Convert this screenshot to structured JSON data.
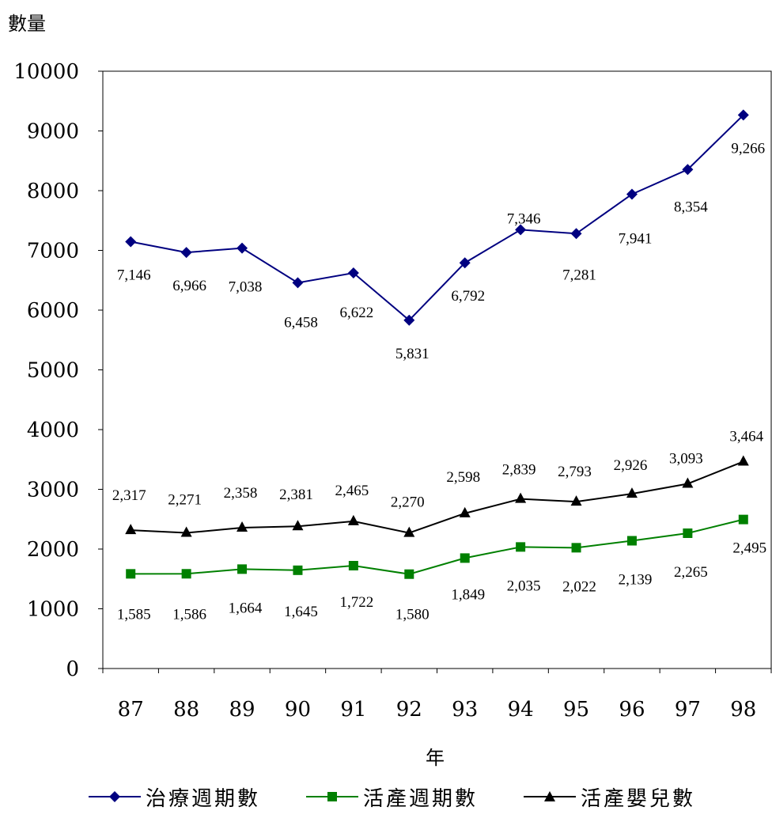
{
  "chart_data": {
    "type": "line",
    "ylabel": "數量",
    "xlabel": "年",
    "ylim": [
      0,
      10000
    ],
    "yticks": [
      0,
      1000,
      2000,
      3000,
      4000,
      5000,
      6000,
      7000,
      8000,
      9000,
      10000
    ],
    "categories": [
      "87",
      "88",
      "89",
      "90",
      "91",
      "92",
      "93",
      "94",
      "95",
      "96",
      "97",
      "98"
    ],
    "grid": false,
    "legend_position": "bottom",
    "series": [
      {
        "name": "治療週期數",
        "marker": "diamond",
        "color": "#000080",
        "values": [
          7146,
          6966,
          7038,
          6458,
          6622,
          5831,
          6792,
          7346,
          7281,
          7941,
          8354,
          9266
        ],
        "labels": [
          "7,146",
          "6,966",
          "7,038",
          "6,458",
          "6,622",
          "5,831",
          "6,792",
          "7,346",
          "7,281",
          "7,941",
          "8,354",
          "9,266"
        ]
      },
      {
        "name": "活產週期數",
        "marker": "square",
        "color": "#008000",
        "values": [
          1585,
          1586,
          1664,
          1645,
          1722,
          1580,
          1849,
          2035,
          2022,
          2139,
          2265,
          2495
        ],
        "labels": [
          "1,585",
          "1,586",
          "1,664",
          "1,645",
          "1,722",
          "1,580",
          "1,849",
          "2,035",
          "2,022",
          "2,139",
          "2,265",
          "2,495"
        ]
      },
      {
        "name": "活產嬰兒數",
        "marker": "triangle",
        "color": "#000000",
        "values": [
          2317,
          2271,
          2358,
          2381,
          2465,
          2270,
          2598,
          2839,
          2793,
          2926,
          3093,
          3464
        ],
        "labels": [
          "2,317",
          "2,271",
          "2,358",
          "2,381",
          "2,465",
          "2,270",
          "2,598",
          "2,839",
          "2,793",
          "2,926",
          "3,093",
          "3,464"
        ]
      }
    ]
  }
}
